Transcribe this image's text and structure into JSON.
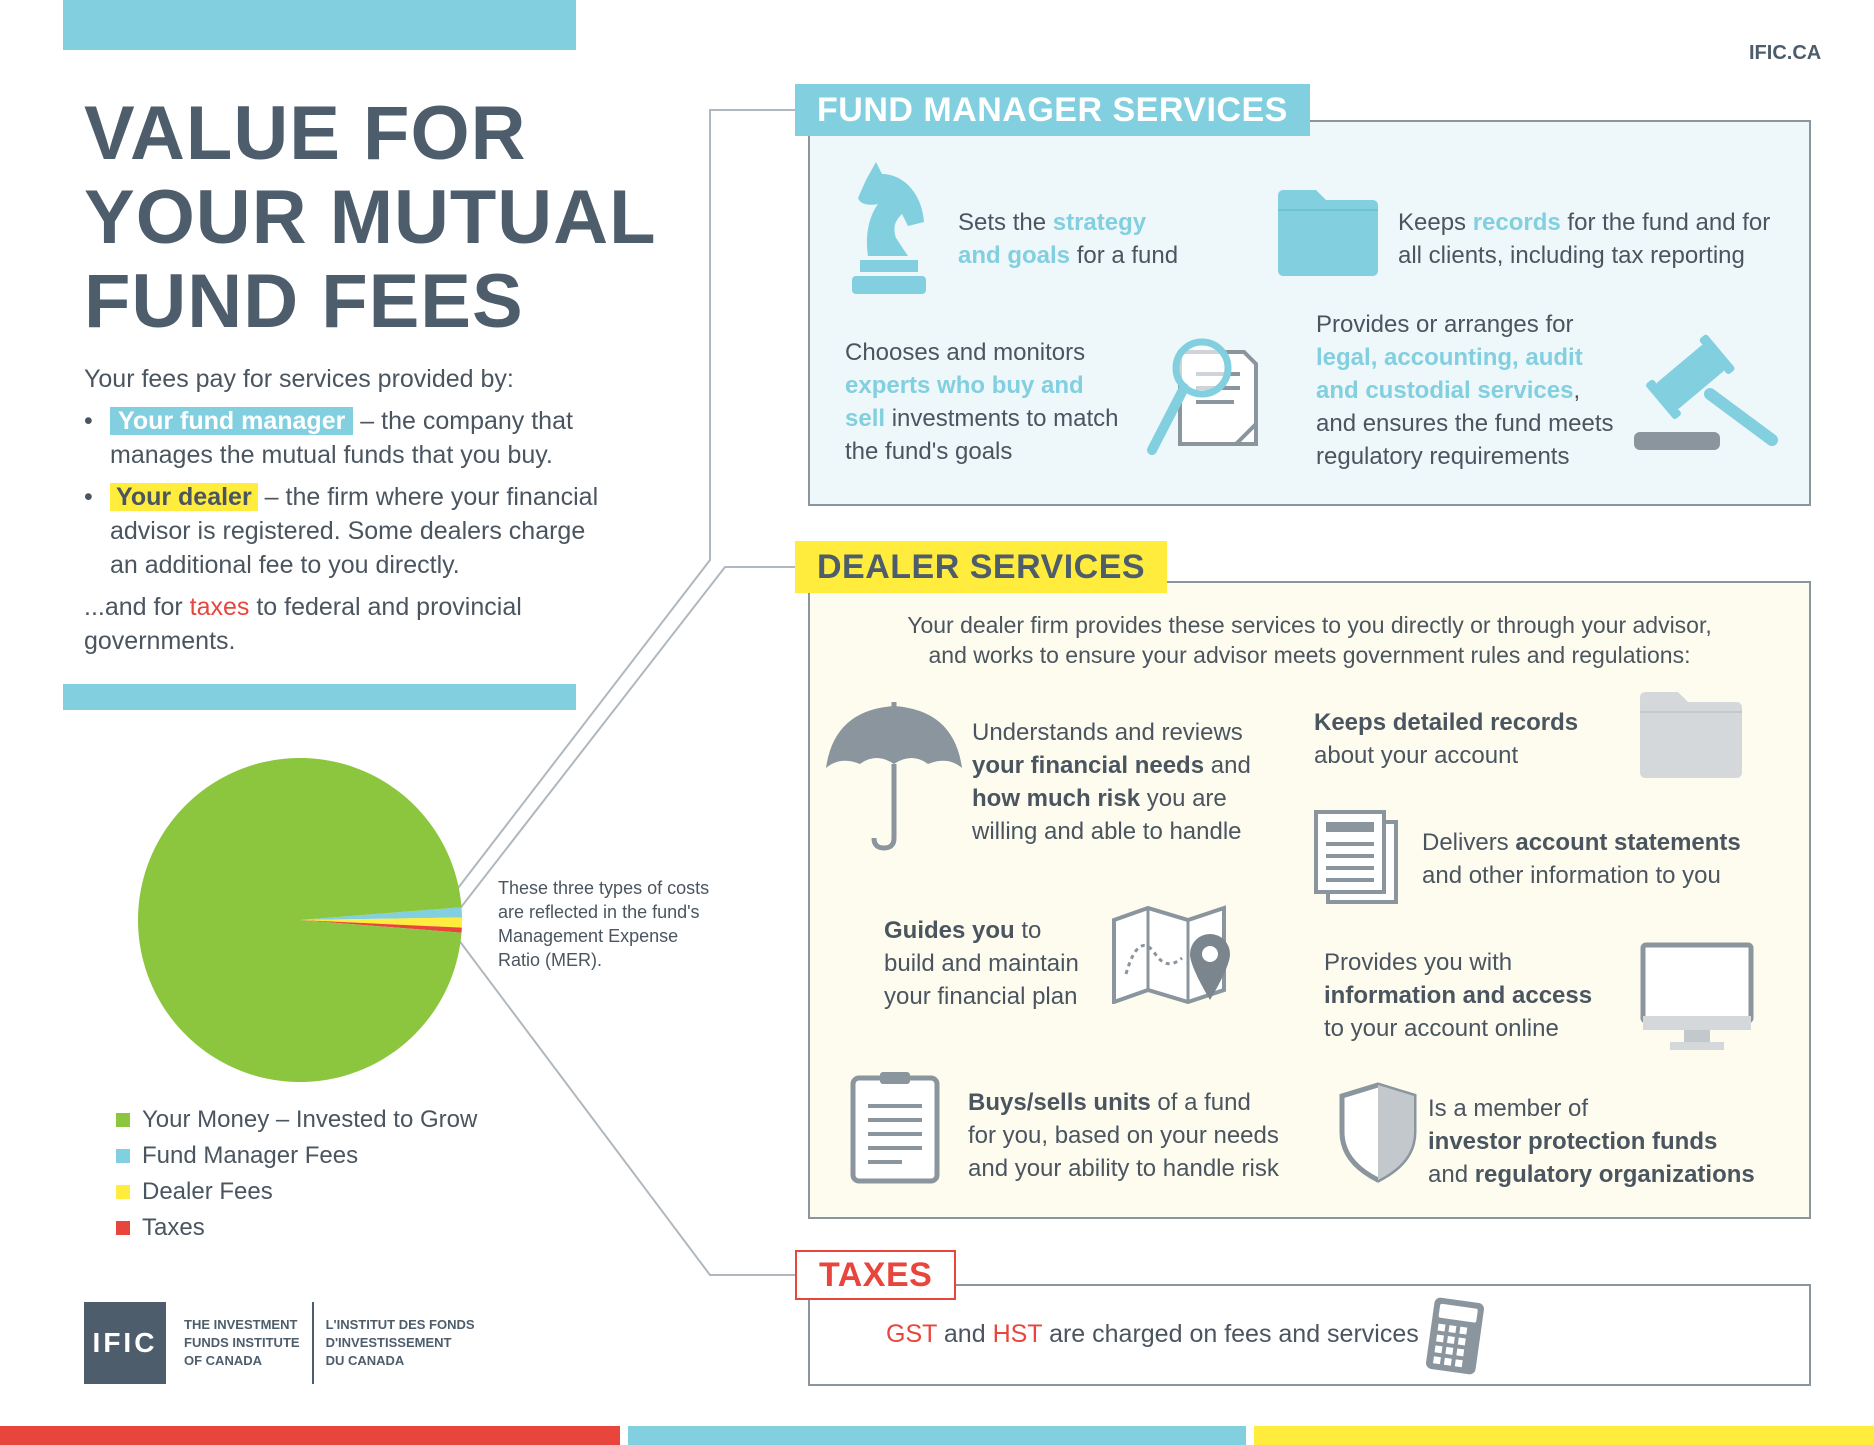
{
  "header": {
    "site": "IFIC.CA",
    "title_lines": [
      "VALUE FOR",
      "YOUR MUTUAL",
      "FUND FEES"
    ]
  },
  "intro": {
    "lead": "Your fees pay for services provided by:",
    "fund_manager_tag": "Your fund manager",
    "fund_manager_rest1": " – the company that",
    "fund_manager_rest2": "manages the mutual funds that you buy.",
    "dealer_tag": "Your dealer",
    "dealer_rest1": " – the firm where your financial",
    "dealer_rest2": "advisor is registered. Some dealers charge",
    "dealer_rest3": "an additional fee to you directly.",
    "taxes_pre": "...and for ",
    "taxes_word": "taxes",
    "taxes_post": " to federal and provincial",
    "taxes_post2": "governments."
  },
  "chart_data": {
    "type": "pie",
    "categories": [
      "Your Money – Invested to Grow",
      "Fund Manager Fees",
      "Dealer Fees",
      "Taxes"
    ],
    "values": [
      97.5,
      1.0,
      1.0,
      0.5
    ],
    "colors": [
      "#8cc63f",
      "#82d0df",
      "#ffec3d",
      "#e8453c"
    ],
    "legend_placement": "bottom-left",
    "annotation": "These three types of costs are reflected in the fund's Management Expense Ratio (MER)."
  },
  "annotation_lines": [
    "These three types of costs",
    "are reflected in the fund's",
    "Management Expense",
    "Ratio (MER)."
  ],
  "fund_manager": {
    "heading": "FUND MANAGER SERVICES",
    "strategy": {
      "a": "Sets the ",
      "hl1": "strategy",
      "hl2": "and goals",
      "b": " for a fund"
    },
    "records": {
      "a": "Keeps ",
      "hl": "records",
      "b": " for the fund and for",
      "c": "all clients, including tax reporting"
    },
    "experts": {
      "a": "Chooses and monitors",
      "hl1": "experts who buy and",
      "hl2": "sell",
      "b": " investments to match",
      "c": "the fund's goals"
    },
    "legal": {
      "a": "Provides or arranges for",
      "hl1": "legal, accounting, audit",
      "hl2": "and custodial services",
      "b": ",",
      "c": "and ensures the fund meets",
      "d": "regulatory requirements"
    }
  },
  "dealer": {
    "heading": "DEALER SERVICES",
    "intro1": "Your dealer firm provides these services to you directly or through your advisor,",
    "intro2": "and works to ensure your advisor meets government rules and regulations:",
    "needs": {
      "a": "Understands and reviews",
      "b1": "your financial needs",
      "b2": " and",
      "c1": "how much risk",
      "c2": " you are",
      "d": "willing and able to handle"
    },
    "records": {
      "b": "Keeps detailed records",
      "a": "about your account"
    },
    "statements": {
      "a": "Delivers ",
      "b": "account statements",
      "c": "and other information to you"
    },
    "guides": {
      "b": "Guides you",
      "a": " to",
      "c": "build and maintain",
      "d": "your financial plan"
    },
    "online": {
      "a": "Provides you with",
      "b": "information and access",
      "c": "to your account online"
    },
    "buys": {
      "b": "Buys/sells units",
      "a": " of a fund",
      "c": "for you, based on your needs",
      "d": "and your ability to handle risk"
    },
    "member": {
      "a": "Is a member of",
      "b1": "investor protection funds",
      "c": "and ",
      "b2": "regulatory organizations"
    }
  },
  "taxes": {
    "heading": "TAXES",
    "gst": "GST",
    "and": " and ",
    "hst": "HST",
    "rest": " are charged on fees and services"
  },
  "logo": {
    "mark": "IFIC",
    "en": [
      "THE INVESTMENT",
      "FUNDS INSTITUTE",
      "OF CANADA"
    ],
    "fr": [
      "L'INSTITUT DES FONDS",
      "D'INVESTISSEMENT",
      "DU CANADA"
    ]
  }
}
